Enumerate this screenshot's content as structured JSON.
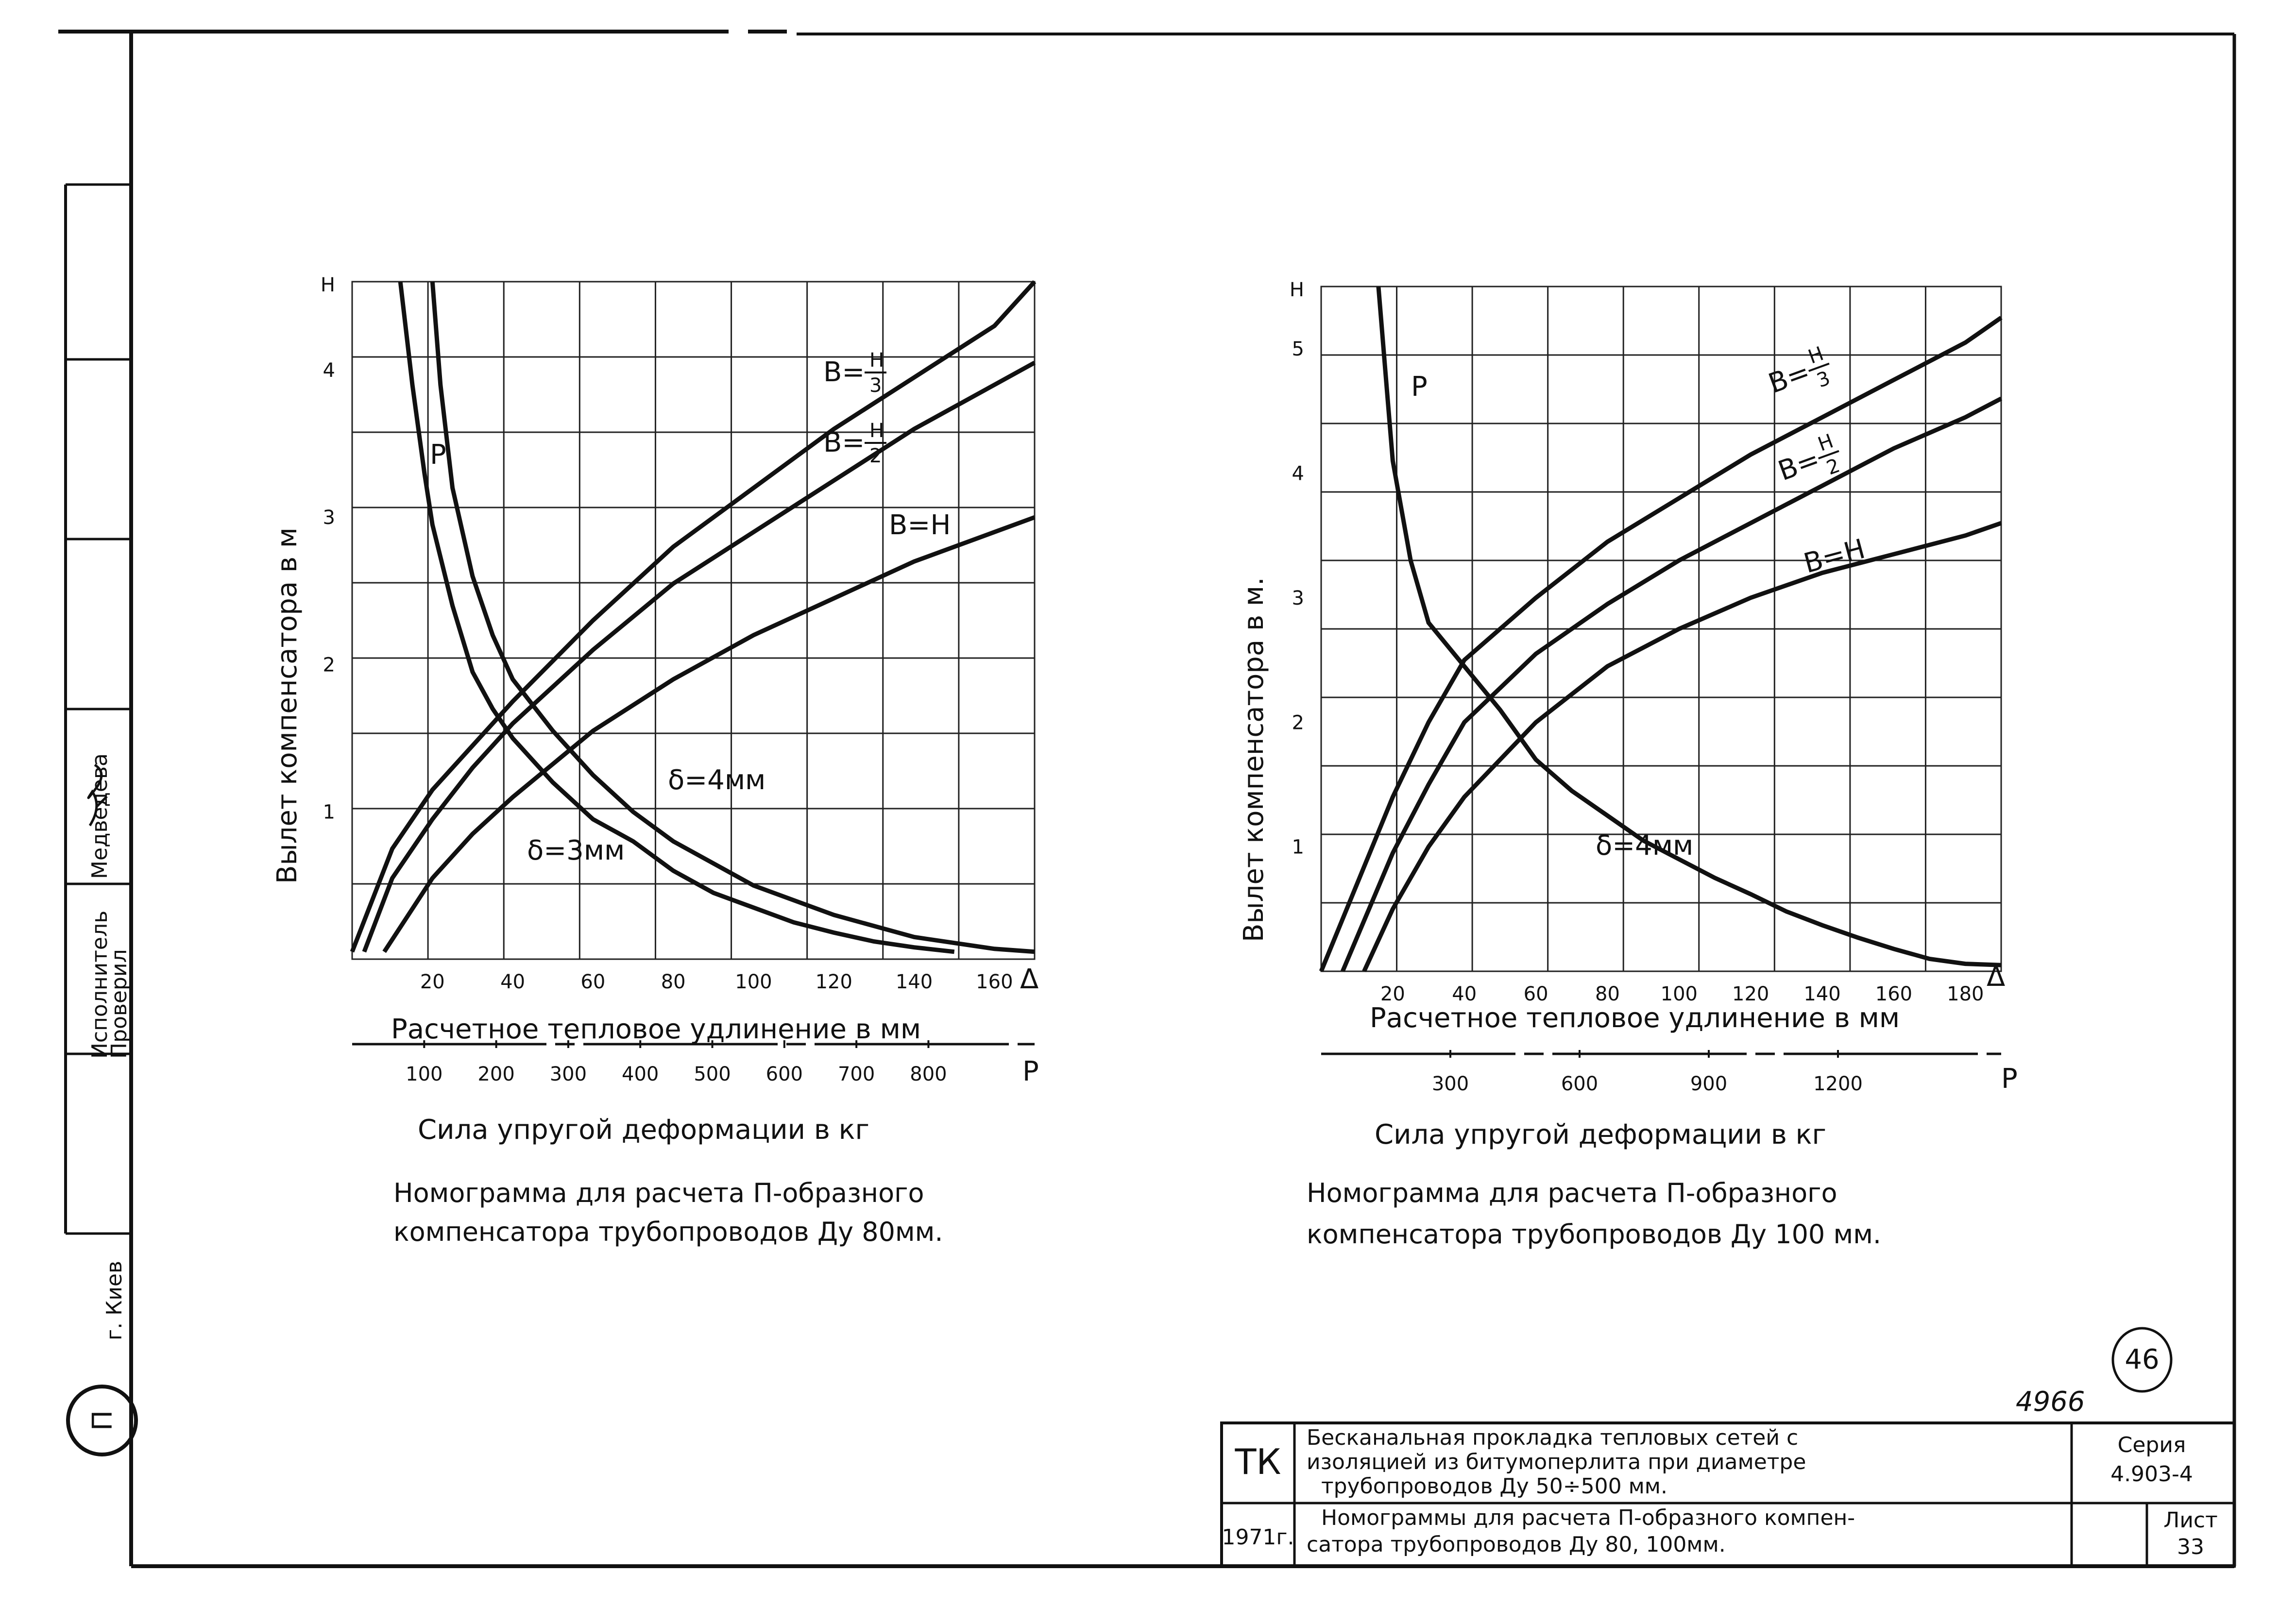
{
  "left_stamp": {
    "org": "г. Киев",
    "executor_title": "Исполнитель",
    "executor_name": "Медведева",
    "checked_title": "Проверил",
    "logo_text": "П"
  },
  "charts_text": [
    {
      "y_axis_title": "Вылет компенсатора в м",
      "x_axis_title": "Расчетное тепловое удлинение в мм",
      "x_axis_symbol": "Δ",
      "p_axis_title": "Сила упругой деформации в кг",
      "p_axis_symbol": "P",
      "caption_line1": "Номограмма для расчета П-образного",
      "caption_line2": "компенсатора трубопроводов Ду 80мм."
    },
    {
      "y_axis_title": "Вылет компенсатора в м.",
      "x_axis_title": "Расчетное тепловое удлинение в мм",
      "x_axis_symbol": "Δ",
      "p_axis_title": "Сила упругой деформации в кг",
      "p_axis_symbol": "P",
      "caption_line1": "Номограмма для расчета П-образного",
      "caption_line2": "компенсатора трубопроводов Ду 100 мм."
    }
  ],
  "chart_data": [
    {
      "type": "line",
      "title": "Номограмма для расчета П-образного компенсатора трубопроводов Ду 80мм.",
      "xlabel": "Расчетное тепловое удлинение в мм",
      "ylabel": "Вылет компенсатора в м",
      "xlim": [
        0,
        170
      ],
      "ylim": [
        0,
        4.6
      ],
      "y_top_label": "Н",
      "x_ticks": [
        20,
        40,
        60,
        80,
        100,
        120,
        140,
        160
      ],
      "y_ticks": [
        1,
        2,
        3,
        4
      ],
      "p_ticks": [
        100,
        200,
        300,
        400,
        500,
        600,
        700,
        800
      ],
      "p_range": [
        0,
        900
      ],
      "series": [
        {
          "name": "B= H/3",
          "x": [
            0,
            10,
            20,
            30,
            40,
            60,
            80,
            100,
            120,
            140,
            160,
            170
          ],
          "y": [
            0.05,
            0.75,
            1.15,
            1.45,
            1.75,
            2.3,
            2.8,
            3.2,
            3.6,
            3.95,
            4.3,
            4.6
          ]
        },
        {
          "name": "B= H/2",
          "x": [
            3,
            10,
            20,
            30,
            40,
            60,
            80,
            100,
            120,
            140,
            160,
            170
          ],
          "y": [
            0.05,
            0.55,
            0.95,
            1.3,
            1.6,
            2.1,
            2.55,
            2.9,
            3.25,
            3.6,
            3.9,
            4.05
          ]
        },
        {
          "name": "B=H",
          "x": [
            8,
            20,
            30,
            40,
            60,
            80,
            100,
            120,
            140,
            160,
            170
          ],
          "y": [
            0.05,
            0.55,
            0.85,
            1.1,
            1.55,
            1.9,
            2.2,
            2.45,
            2.7,
            2.9,
            3.0
          ]
        },
        {
          "name": "δ=3мм",
          "x": [
            12,
            15,
            18,
            20,
            25,
            30,
            35,
            40,
            50,
            60,
            70,
            80,
            90,
            100,
            110,
            120,
            130,
            140,
            150
          ],
          "y": [
            4.6,
            3.9,
            3.3,
            2.95,
            2.4,
            1.95,
            1.7,
            1.5,
            1.2,
            0.95,
            0.8,
            0.6,
            0.45,
            0.35,
            0.25,
            0.18,
            0.12,
            0.08,
            0.05
          ]
        },
        {
          "name": "δ=4мм",
          "x": [
            20,
            22,
            25,
            30,
            35,
            40,
            50,
            60,
            70,
            80,
            100,
            120,
            140,
            160,
            170
          ],
          "y": [
            4.6,
            3.9,
            3.2,
            2.6,
            2.2,
            1.9,
            1.55,
            1.25,
            1.0,
            0.8,
            0.5,
            0.3,
            0.15,
            0.07,
            0.05
          ]
        }
      ],
      "annotations": [
        "Р",
        "В= Н/3",
        "В= Н/2",
        "В=Н",
        "δ=4мм",
        "δ=3мм"
      ]
    },
    {
      "type": "line",
      "title": "Номограмма для расчета П-образного компенсатора трубопроводов Ду 100 мм.",
      "xlabel": "Расчетное тепловое удлинение в мм",
      "ylabel": "Вылет компенсатора в м.",
      "xlim": [
        0,
        190
      ],
      "ylim": [
        0,
        5.5
      ],
      "y_top_label": "Н",
      "x_ticks": [
        20,
        40,
        60,
        80,
        100,
        120,
        140,
        160,
        180
      ],
      "y_ticks": [
        1,
        2,
        3,
        4,
        5
      ],
      "p_ticks": [
        300,
        600,
        900,
        1200
      ],
      "p_range": [
        0,
        1500
      ],
      "series": [
        {
          "name": "B= H/3",
          "x": [
            0,
            10,
            20,
            30,
            40,
            60,
            80,
            100,
            120,
            140,
            160,
            180,
            190
          ],
          "y": [
            0,
            0.7,
            1.4,
            2.0,
            2.5,
            3.0,
            3.45,
            3.8,
            4.15,
            4.45,
            4.75,
            5.05,
            5.25
          ]
        },
        {
          "name": "B= H/2",
          "x": [
            6,
            20,
            30,
            40,
            60,
            80,
            100,
            120,
            140,
            160,
            180,
            190
          ],
          "y": [
            0,
            0.95,
            1.5,
            2.0,
            2.55,
            2.95,
            3.3,
            3.6,
            3.9,
            4.2,
            4.45,
            4.6
          ]
        },
        {
          "name": "B=H",
          "x": [
            12,
            20,
            30,
            40,
            60,
            80,
            100,
            120,
            140,
            160,
            180,
            190
          ],
          "y": [
            0,
            0.5,
            1.0,
            1.4,
            2.0,
            2.45,
            2.75,
            3.0,
            3.2,
            3.35,
            3.5,
            3.6
          ]
        },
        {
          "name": "δ=4мм",
          "x": [
            16,
            18,
            20,
            25,
            30,
            40,
            50,
            60,
            70,
            80,
            90,
            100,
            110,
            120,
            130,
            140,
            150,
            160,
            170,
            180,
            190
          ],
          "y": [
            5.5,
            4.8,
            4.1,
            3.3,
            2.8,
            2.45,
            2.1,
            1.7,
            1.45,
            1.25,
            1.05,
            0.9,
            0.75,
            0.62,
            0.48,
            0.37,
            0.27,
            0.18,
            0.1,
            0.06,
            0.05
          ]
        }
      ],
      "annotations": [
        "Р",
        "В= Н/3",
        "В= Н/2",
        "В=Н",
        "δ=4мм"
      ]
    }
  ],
  "page_number": "46",
  "archive_number": "4966",
  "title_block": {
    "org_code": "ТК",
    "description_line1": "Бесканальная прокладка тепловых сетей с",
    "description_line2": "изоляцией из битумоперлита при диаметре",
    "description_line3": "трубопроводов Ду 50÷500 мм.",
    "series_label": "Серия",
    "series_value": "4.903-4",
    "year": "1971г.",
    "sheet_title_line1": "Номограммы для расчета П-образного компен-",
    "sheet_title_line2": "сатора трубопроводов Ду 80, 100мм.",
    "sheet_label": "Лист",
    "sheet_value": "33"
  }
}
